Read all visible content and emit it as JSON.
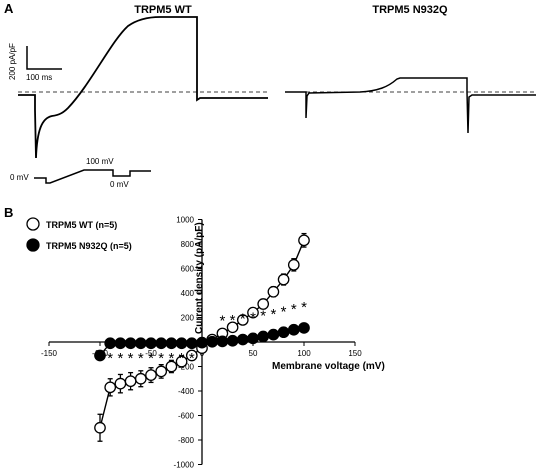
{
  "panel_a": {
    "letter": "A",
    "wt_title": "TRPM5 WT",
    "mut_title": "TRPM5 N932Q",
    "scale_current": "200 pA/pF",
    "scale_time": "100 ms",
    "protocol": {
      "label_0mv_left": "0 mV",
      "label_100mv": "100 mV",
      "label_0mv_right": "0 mV"
    }
  },
  "panel_b": {
    "letter": "B",
    "significance_marker": "*"
  },
  "chart_data": {
    "type": "scatter",
    "xlabel": "Membrane voltage (mV)",
    "ylabel": "Current density (pA/pF)",
    "xlim": [
      -150,
      150
    ],
    "ylim": [
      -1000,
      1000
    ],
    "xticks": [
      -150,
      -100,
      -50,
      0,
      50,
      100,
      150
    ],
    "yticks": [
      -1000,
      -800,
      -600,
      -400,
      -200,
      0,
      200,
      400,
      600,
      800,
      1000
    ],
    "legend_position": "top-left",
    "series": [
      {
        "name": "TRPM5 WT (n=5)",
        "marker": "open-circle",
        "color": "#000000",
        "x": [
          -100,
          -90,
          -80,
          -70,
          -60,
          -50,
          -40,
          -30,
          -20,
          -10,
          0,
          10,
          20,
          30,
          40,
          50,
          60,
          70,
          80,
          90,
          100
        ],
        "y": [
          -700,
          -370,
          -340,
          -320,
          -300,
          -270,
          -240,
          -200,
          -160,
          -110,
          -50,
          20,
          70,
          120,
          180,
          240,
          310,
          410,
          510,
          630,
          830
        ],
        "err": [
          110,
          70,
          75,
          70,
          65,
          60,
          55,
          50,
          45,
          40,
          25,
          15,
          20,
          25,
          30,
          35,
          40,
          40,
          45,
          50,
          55
        ]
      },
      {
        "name": "TRPM5 N932Q (n=5)",
        "marker": "filled-circle",
        "color": "#000000",
        "x": [
          -100,
          -90,
          -80,
          -70,
          -60,
          -50,
          -40,
          -30,
          -20,
          -10,
          0,
          10,
          20,
          30,
          40,
          50,
          60,
          70,
          80,
          90,
          100
        ],
        "y": [
          -110,
          -10,
          -10,
          -10,
          -10,
          -10,
          -10,
          -10,
          -10,
          -10,
          -5,
          2,
          5,
          10,
          20,
          30,
          45,
          60,
          80,
          100,
          115
        ],
        "err": [
          10,
          3,
          3,
          3,
          3,
          3,
          3,
          3,
          3,
          3,
          3,
          3,
          3,
          4,
          5,
          6,
          8,
          10,
          12,
          14,
          16
        ]
      }
    ]
  }
}
